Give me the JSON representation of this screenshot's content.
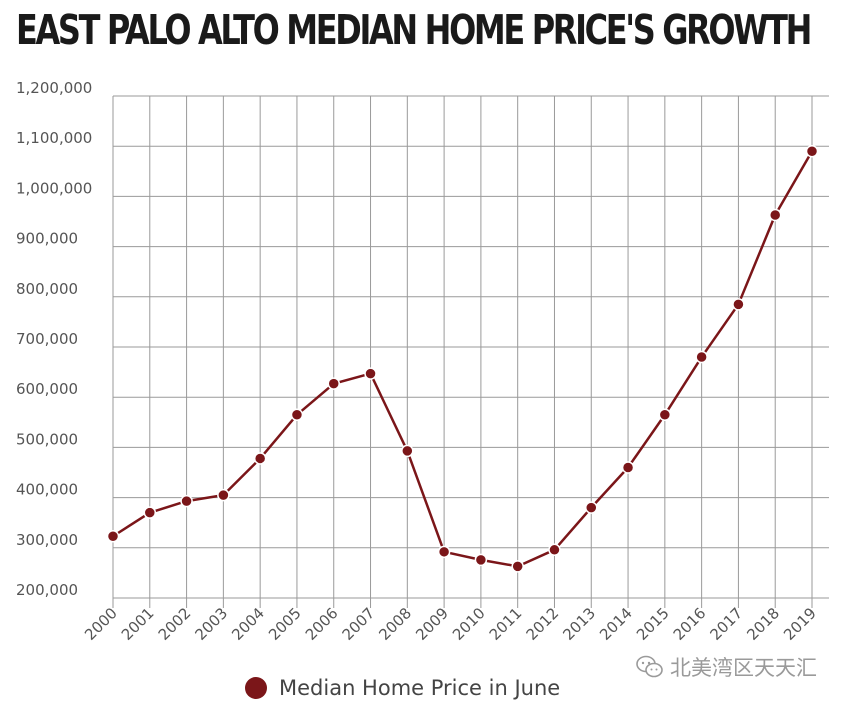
{
  "page_title": "EAST PALO ALTO MEDIAN HOME PRICE'S GROWTH",
  "watermark": {
    "text": "北美湾区天天汇",
    "icon": "wechat-icon"
  },
  "colors": {
    "series": "#7b1619",
    "grid": "#9a9a9a",
    "tick_text": "#555555",
    "title": "#1a1a1a"
  },
  "chart_data": {
    "type": "line",
    "title": "EAST PALO ALTO MEDIAN HOME PRICE'S GROWTH",
    "xlabel": "",
    "ylabel": "",
    "x": [
      "2000",
      "2001",
      "2002",
      "2003",
      "2004",
      "2005",
      "2006",
      "2007",
      "2008",
      "2009",
      "2010",
      "2011",
      "2012",
      "2013",
      "2014",
      "2015",
      "2016",
      "2017",
      "2018",
      "2019"
    ],
    "ylim": [
      200000,
      1200000
    ],
    "yticks": [
      200000,
      300000,
      400000,
      500000,
      600000,
      700000,
      800000,
      900000,
      1000000,
      1100000,
      1200000
    ],
    "ytick_labels": [
      "200,000",
      "300,000",
      "400,000",
      "500,000",
      "600,000",
      "700,000",
      "800,000",
      "900,000",
      "1,000,000",
      "1,100,000",
      "1,200,000"
    ],
    "grid": true,
    "legend_position": "bottom",
    "series": [
      {
        "name": "Median Home Price in June",
        "values": [
          323000,
          370000,
          393000,
          405000,
          478000,
          565000,
          627000,
          647000,
          493000,
          292000,
          276000,
          263000,
          296000,
          380000,
          460000,
          565000,
          680000,
          785000,
          963000,
          1090000
        ]
      }
    ]
  }
}
